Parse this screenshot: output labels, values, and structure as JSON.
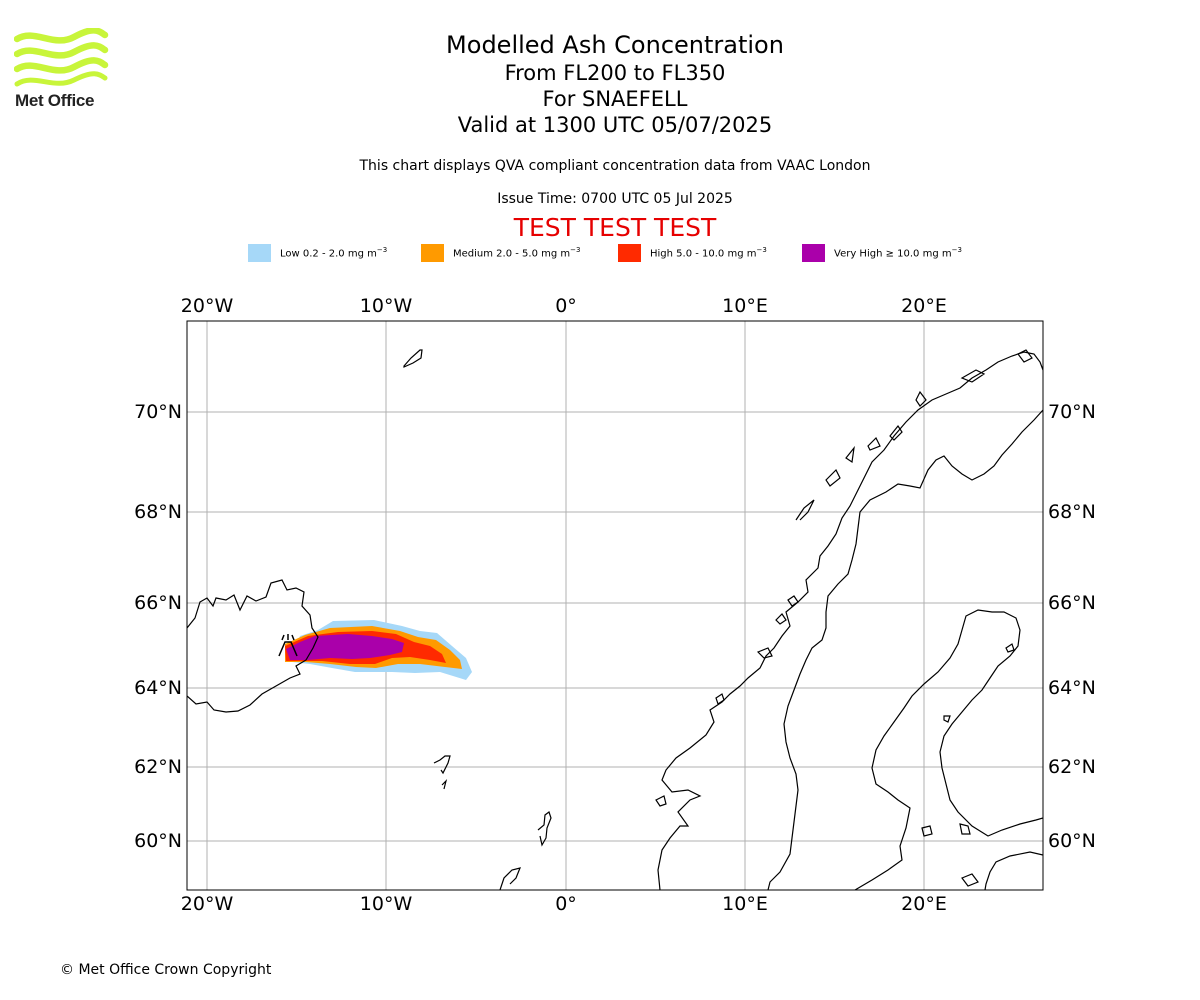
{
  "header": {
    "logo_text": "Met Office",
    "title": "Modelled Ash Concentration",
    "flight_levels": "From FL200 to FL350",
    "volcano": "For SNAEFELL",
    "valid": "Valid at 1300 UTC 05/07/2025",
    "description": "This chart displays QVA compliant concentration data from VAAC London",
    "issue_time": "Issue Time: 0700 UTC 05 Jul 2025",
    "test_banner": "TEST TEST TEST"
  },
  "legend": [
    {
      "label": "Low 0.2 - 2.0 mg m",
      "sup": "−3",
      "color": "#a6d8f8"
    },
    {
      "label": "Medium 2.0 - 5.0 mg m",
      "sup": "−3",
      "color": "#ff9a00"
    },
    {
      "label": "High 5.0 - 10.0 mg m",
      "sup": "−3",
      "color": "#ff2a00"
    },
    {
      "label": "Very High ≥ 10.0 mg m",
      "sup": "−3",
      "color": "#aa00aa"
    }
  ],
  "map": {
    "lon_labels": [
      "20°W",
      "10°W",
      "0°",
      "10°E",
      "20°E"
    ],
    "lat_labels": [
      "70°N",
      "68°N",
      "66°N",
      "64°N",
      "62°N",
      "60°N"
    ],
    "lon_values": [
      -20,
      -10,
      0,
      10,
      20
    ],
    "lat_values": [
      70,
      68,
      66,
      64,
      62,
      60
    ],
    "grid": true,
    "volcano_icon": "volcano-icon"
  },
  "footer": {
    "copyright": "© Met Office Crown Copyright"
  }
}
